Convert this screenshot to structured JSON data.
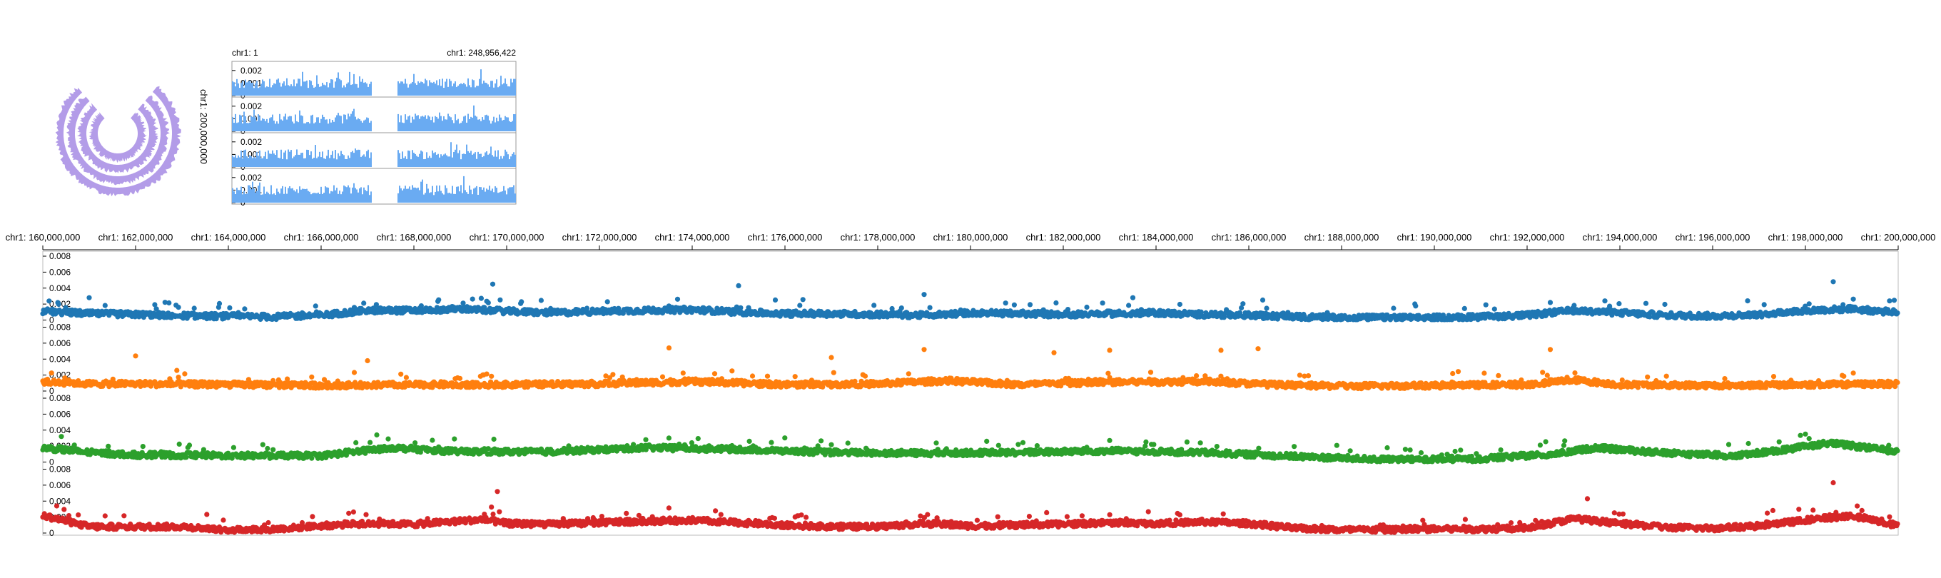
{
  "chart_data": [
    {
      "type": "circular",
      "tracks": 4,
      "color": "#b39ce8",
      "tick_label": "chr1: 200,000,000"
    },
    {
      "type": "bar",
      "start_label": "chr1: 1",
      "end_label": "chr1: 248,956,422",
      "color": "#6aabf2",
      "tracks": 4,
      "ylim": [
        0,
        0.0025
      ],
      "ytick_labels": [
        "0.002",
        "0.001",
        "0"
      ],
      "gap_start": 0.49,
      "gap_end": 0.58
    },
    {
      "type": "scatter",
      "xlim": [
        160000000,
        200000000
      ],
      "xtick_labels": [
        "chr1: 160,000,000",
        "chr1: 162,000,000",
        "chr1: 164,000,000",
        "chr1: 166,000,000",
        "chr1: 168,000,000",
        "chr1: 170,000,000",
        "chr1: 172,000,000",
        "chr1: 174,000,000",
        "chr1: 176,000,000",
        "chr1: 178,000,000",
        "chr1: 180,000,000",
        "chr1: 182,000,000",
        "chr1: 184,000,000",
        "chr1: 186,000,000",
        "chr1: 188,000,000",
        "chr1: 190,000,000",
        "chr1: 192,000,000",
        "chr1: 194,000,000",
        "chr1: 196,000,000",
        "chr1: 198,000,000",
        "chr1: 200,000,000"
      ],
      "ylim": [
        0,
        0.008
      ],
      "ytick_labels": [
        "0.008",
        "0.006",
        "0.004",
        "0.002",
        "0"
      ],
      "grid": false,
      "series": [
        {
          "color": "#1f77b4",
          "baseline": [
            [
              160000000,
              0.0011
            ],
            [
              161000000,
              0.0008
            ],
            [
              162000000,
              0.0007
            ],
            [
              163500000,
              0.0005
            ],
            [
              165000000,
              0.0004
            ],
            [
              166000000,
              0.0006
            ],
            [
              167000000,
              0.0012
            ],
            [
              168000000,
              0.0012
            ],
            [
              169000000,
              0.0014
            ],
            [
              170000000,
              0.0011
            ],
            [
              171000000,
              0.0009
            ],
            [
              172000000,
              0.0011
            ],
            [
              173000000,
              0.0012
            ],
            [
              174000000,
              0.0013
            ],
            [
              175000000,
              0.001
            ],
            [
              176000000,
              0.0008
            ],
            [
              177000000,
              0.0008
            ],
            [
              178000000,
              0.0007
            ],
            [
              179000000,
              0.0006
            ],
            [
              180000000,
              0.0009
            ],
            [
              181000000,
              0.0008
            ],
            [
              182000000,
              0.0007
            ],
            [
              183000000,
              0.0008
            ],
            [
              184000000,
              0.0009
            ],
            [
              185000000,
              0.0007
            ],
            [
              186000000,
              0.0006
            ],
            [
              187000000,
              0.0004
            ],
            [
              188000000,
              0.0003
            ],
            [
              189000000,
              0.0003
            ],
            [
              190000000,
              0.0003
            ],
            [
              191000000,
              0.0004
            ],
            [
              192000000,
              0.0006
            ],
            [
              193000000,
              0.0012
            ],
            [
              194000000,
              0.0009
            ],
            [
              195000000,
              0.0006
            ],
            [
              196000000,
              0.0005
            ],
            [
              197000000,
              0.0007
            ],
            [
              198000000,
              0.0012
            ],
            [
              199000000,
              0.0014
            ],
            [
              200000000,
              0.0009
            ]
          ],
          "spikes": [
            [
              161000000,
              0.0028
            ],
            [
              169700000,
              0.0045
            ],
            [
              175000000,
              0.0043
            ],
            [
              179000000,
              0.0032
            ],
            [
              183500000,
              0.0028
            ],
            [
              186300000,
              0.0025
            ],
            [
              192500000,
              0.0022
            ],
            [
              198600000,
              0.0048
            ]
          ]
        },
        {
          "color": "#ff7f0e",
          "baseline": [
            [
              160000000,
              0.0012
            ],
            [
              161000000,
              0.0009
            ],
            [
              162000000,
              0.0009
            ],
            [
              164000000,
              0.0008
            ],
            [
              166000000,
              0.0007
            ],
            [
              168000000,
              0.0008
            ],
            [
              170000000,
              0.0008
            ],
            [
              172000000,
              0.0009
            ],
            [
              174000000,
              0.0012
            ],
            [
              176000000,
              0.0008
            ],
            [
              178000000,
              0.0009
            ],
            [
              179500000,
              0.0013
            ],
            [
              181000000,
              0.0008
            ],
            [
              183000000,
              0.0011
            ],
            [
              185000000,
              0.0012
            ],
            [
              186500000,
              0.0008
            ],
            [
              188000000,
              0.0006
            ],
            [
              190000000,
              0.0007
            ],
            [
              192000000,
              0.0008
            ],
            [
              193000000,
              0.0014
            ],
            [
              194000000,
              0.0008
            ],
            [
              196000000,
              0.0007
            ],
            [
              198000000,
              0.0008
            ],
            [
              200000000,
              0.0009
            ]
          ],
          "spikes": [
            [
              162000000,
              0.0044
            ],
            [
              167000000,
              0.0038
            ],
            [
              173500000,
              0.0054
            ],
            [
              177000000,
              0.0042
            ],
            [
              179000000,
              0.0052
            ],
            [
              181800000,
              0.0048
            ],
            [
              183000000,
              0.0051
            ],
            [
              185400000,
              0.0051
            ],
            [
              186200000,
              0.0053
            ],
            [
              192500000,
              0.0052
            ]
          ]
        },
        {
          "color": "#2ca02c",
          "baseline": [
            [
              160000000,
              0.0018
            ],
            [
              161000000,
              0.0012
            ],
            [
              162000000,
              0.0009
            ],
            [
              164000000,
              0.0008
            ],
            [
              166000000,
              0.0008
            ],
            [
              167500000,
              0.0018
            ],
            [
              169000000,
              0.0013
            ],
            [
              171000000,
              0.0013
            ],
            [
              173000000,
              0.0018
            ],
            [
              175000000,
              0.0016
            ],
            [
              177000000,
              0.0012
            ],
            [
              179000000,
              0.0011
            ],
            [
              181000000,
              0.0012
            ],
            [
              183000000,
              0.0014
            ],
            [
              185000000,
              0.0012
            ],
            [
              187000000,
              0.0007
            ],
            [
              189000000,
              0.0003
            ],
            [
              191000000,
              0.0004
            ],
            [
              192500000,
              0.001
            ],
            [
              193500000,
              0.0018
            ],
            [
              195000000,
              0.0011
            ],
            [
              196500000,
              0.0008
            ],
            [
              197500000,
              0.0015
            ],
            [
              198500000,
              0.0024
            ],
            [
              200000000,
              0.0013
            ]
          ],
          "spikes": [
            [
              160400000,
              0.0032
            ],
            [
              167200000,
              0.0034
            ],
            [
              173000000,
              0.0028
            ],
            [
              183000000,
              0.0027
            ],
            [
              198000000,
              0.0035
            ]
          ]
        },
        {
          "color": "#d62728",
          "baseline": [
            [
              160000000,
              0.0022
            ],
            [
              161000000,
              0.0008
            ],
            [
              162000000,
              0.0008
            ],
            [
              163000000,
              0.0008
            ],
            [
              164000000,
              0.0004
            ],
            [
              165000000,
              0.0005
            ],
            [
              166000000,
              0.0009
            ],
            [
              167000000,
              0.0012
            ],
            [
              168000000,
              0.0011
            ],
            [
              169500000,
              0.0017
            ],
            [
              170000000,
              0.0012
            ],
            [
              171000000,
              0.0011
            ],
            [
              172000000,
              0.0013
            ],
            [
              173000000,
              0.0015
            ],
            [
              174000000,
              0.0016
            ],
            [
              175000000,
              0.0013
            ],
            [
              176000000,
              0.001
            ],
            [
              177000000,
              0.0008
            ],
            [
              178000000,
              0.0008
            ],
            [
              179000000,
              0.0012
            ],
            [
              180000000,
              0.0009
            ],
            [
              181000000,
              0.001
            ],
            [
              182000000,
              0.0011
            ],
            [
              183000000,
              0.0013
            ],
            [
              184000000,
              0.0012
            ],
            [
              185000000,
              0.0014
            ],
            [
              186000000,
              0.0012
            ],
            [
              187000000,
              0.0006
            ],
            [
              188000000,
              0.0004
            ],
            [
              189000000,
              0.0004
            ],
            [
              190000000,
              0.0005
            ],
            [
              191000000,
              0.0005
            ],
            [
              192000000,
              0.0006
            ],
            [
              193000000,
              0.0018
            ],
            [
              194000000,
              0.0012
            ],
            [
              195000000,
              0.0007
            ],
            [
              196000000,
              0.0006
            ],
            [
              197000000,
              0.0009
            ],
            [
              198000000,
              0.0016
            ],
            [
              199000000,
              0.0022
            ],
            [
              200000000,
              0.0009
            ]
          ],
          "spikes": [
            [
              160300000,
              0.0034
            ],
            [
              169800000,
              0.0052
            ],
            [
              193300000,
              0.0043
            ],
            [
              198600000,
              0.0063
            ]
          ]
        }
      ]
    }
  ]
}
